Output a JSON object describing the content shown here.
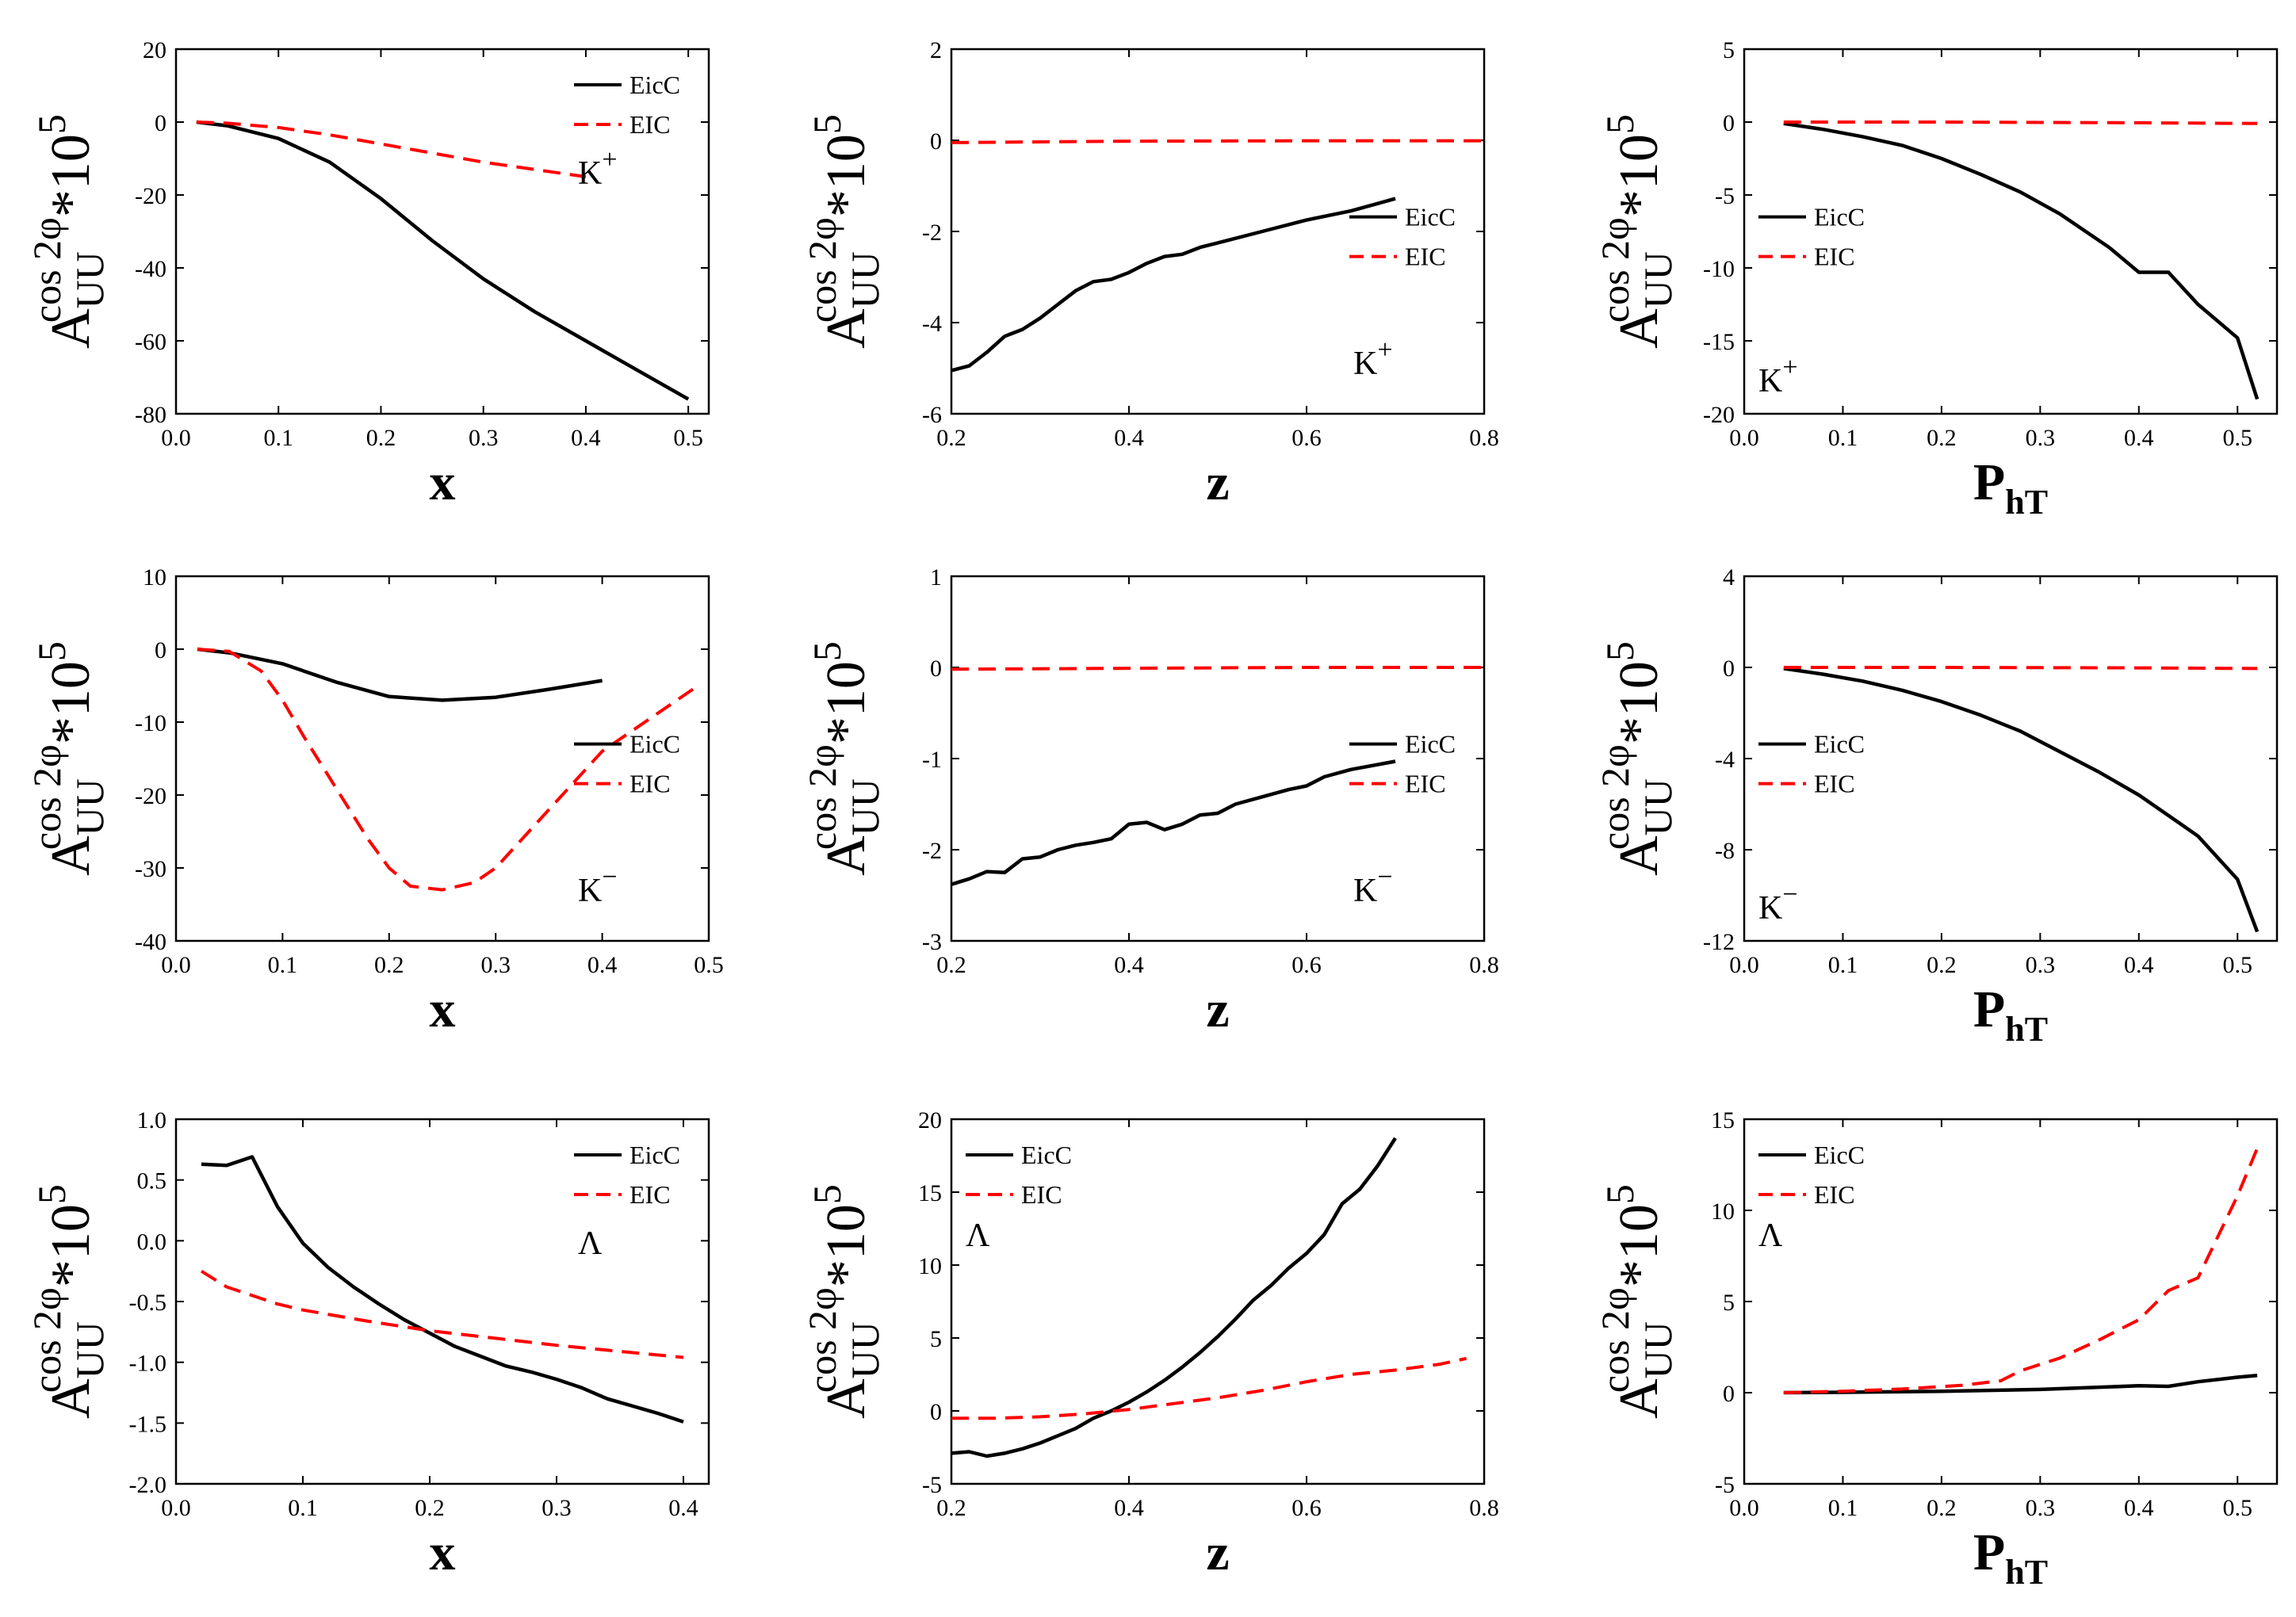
{
  "colors": {
    "eicc": "#000000",
    "eic": "#ff0000",
    "axis": "#000000"
  },
  "chart_data": [
    {
      "type": "line",
      "panel": "r0c0",
      "hadron": "K",
      "hadron_sup": "+",
      "xlabel": "x",
      "xlim": [
        0.0,
        0.52
      ],
      "ylim": [
        -80,
        20
      ],
      "xticks": [
        0.0,
        0.1,
        0.2,
        0.3,
        0.4,
        0.5
      ],
      "xtick_labels": [
        "0.0",
        "0.1",
        "0.2",
        "0.3",
        "0.4",
        "0.5"
      ],
      "yticks": [
        -80,
        -60,
        -40,
        -20,
        0,
        20
      ],
      "ytick_labels": [
        "-80",
        "-60",
        "-40",
        "-20",
        "0",
        "20"
      ],
      "legend": [
        "EicC",
        "EIC"
      ],
      "legend_loc": "top-right",
      "annot_loc": "right-mid-top",
      "series": [
        {
          "name": "EicC",
          "style": "solid",
          "x": [
            0.02,
            0.05,
            0.1,
            0.15,
            0.2,
            0.25,
            0.3,
            0.35,
            0.4,
            0.45,
            0.5
          ],
          "y": [
            0,
            -1,
            -4.5,
            -11,
            -21,
            -32.5,
            -43,
            -52,
            -60,
            -68,
            -76
          ]
        },
        {
          "name": "EIC",
          "style": "dashed",
          "x": [
            0.02,
            0.05,
            0.1,
            0.15,
            0.2,
            0.25,
            0.3,
            0.35,
            0.4
          ],
          "y": [
            0,
            -0.3,
            -1.5,
            -3.5,
            -6,
            -8.5,
            -11,
            -13,
            -15
          ]
        }
      ]
    },
    {
      "type": "line",
      "panel": "r0c1",
      "hadron": "K",
      "hadron_sup": "+",
      "xlabel": "z",
      "xlim": [
        0.2,
        0.8
      ],
      "ylim": [
        -6,
        2
      ],
      "xticks": [
        0.2,
        0.4,
        0.6,
        0.8
      ],
      "xtick_labels": [
        "0.2",
        "0.4",
        "0.6",
        "0.8"
      ],
      "yticks": [
        -6,
        -4,
        -2,
        0,
        2
      ],
      "ytick_labels": [
        "-6",
        "-4",
        "-2",
        "0",
        "2"
      ],
      "legend": [
        "EicC",
        "EIC"
      ],
      "legend_loc": "mid-right",
      "annot_loc": "bottom-right",
      "series": [
        {
          "name": "EicC",
          "style": "solid",
          "x": [
            0.2,
            0.22,
            0.24,
            0.26,
            0.28,
            0.3,
            0.32,
            0.34,
            0.36,
            0.38,
            0.4,
            0.42,
            0.44,
            0.46,
            0.48,
            0.5,
            0.55,
            0.6,
            0.65,
            0.7
          ],
          "y": [
            -5.05,
            -4.95,
            -4.65,
            -4.3,
            -4.15,
            -3.9,
            -3.6,
            -3.3,
            -3.1,
            -3.05,
            -2.9,
            -2.7,
            -2.55,
            -2.5,
            -2.35,
            -2.25,
            -2.0,
            -1.75,
            -1.55,
            -1.28
          ]
        },
        {
          "name": "EIC",
          "style": "dashed",
          "x": [
            0.2,
            0.4,
            0.6,
            0.8
          ],
          "y": [
            -0.05,
            -0.02,
            -0.01,
            -0.01
          ]
        }
      ]
    },
    {
      "type": "line",
      "panel": "r0c2",
      "hadron": "K",
      "hadron_sup": "+",
      "xlabel": "P",
      "xlabel_sub": "hT",
      "xlim": [
        0.0,
        0.54
      ],
      "ylim": [
        -20,
        5
      ],
      "xticks": [
        0.0,
        0.1,
        0.2,
        0.3,
        0.4,
        0.5
      ],
      "xtick_labels": [
        "0.0",
        "0.1",
        "0.2",
        "0.3",
        "0.4",
        "0.5"
      ],
      "yticks": [
        -20,
        -15,
        -10,
        -5,
        0,
        5
      ],
      "ytick_labels": [
        "-20",
        "-15",
        "-10",
        "-5",
        "0",
        "5"
      ],
      "legend": [
        "EicC",
        "EIC"
      ],
      "legend_loc": "mid-left",
      "annot_loc": "bottom-left",
      "series": [
        {
          "name": "EicC",
          "style": "solid",
          "x": [
            0.04,
            0.08,
            0.12,
            0.16,
            0.2,
            0.24,
            0.28,
            0.32,
            0.37,
            0.4,
            0.43,
            0.46,
            0.5,
            0.52
          ],
          "y": [
            -0.1,
            -0.5,
            -1.0,
            -1.6,
            -2.5,
            -3.6,
            -4.8,
            -6.3,
            -8.6,
            -10.3,
            -10.3,
            -12.5,
            -14.8,
            -19
          ]
        },
        {
          "name": "EIC",
          "style": "dashed",
          "x": [
            0.04,
            0.2,
            0.4,
            0.52
          ],
          "y": [
            0,
            0,
            -0.05,
            -0.1
          ]
        }
      ]
    },
    {
      "type": "line",
      "panel": "r1c0",
      "hadron": "K",
      "hadron_sup": "−",
      "xlabel": "x",
      "xlim": [
        0.0,
        0.5
      ],
      "ylim": [
        -40,
        10
      ],
      "xticks": [
        0.0,
        0.1,
        0.2,
        0.3,
        0.4,
        0.5
      ],
      "xtick_labels": [
        "0.0",
        "0.1",
        "0.2",
        "0.3",
        "0.4",
        "0.5"
      ],
      "yticks": [
        -40,
        -30,
        -20,
        -10,
        0,
        10
      ],
      "ytick_labels": [
        "-40",
        "-30",
        "-20",
        "-10",
        "0",
        "10"
      ],
      "legend": [
        "EicC",
        "EIC"
      ],
      "legend_loc": "mid-right",
      "annot_loc": "bottom-right",
      "series": [
        {
          "name": "EicC",
          "style": "solid",
          "x": [
            0.02,
            0.05,
            0.1,
            0.15,
            0.2,
            0.25,
            0.3,
            0.35,
            0.4
          ],
          "y": [
            0,
            -0.5,
            -2,
            -4.5,
            -6.5,
            -7,
            -6.6,
            -5.5,
            -4.3
          ]
        },
        {
          "name": "EIC",
          "style": "dashed",
          "x": [
            0.02,
            0.05,
            0.08,
            0.1,
            0.12,
            0.15,
            0.18,
            0.2,
            0.22,
            0.25,
            0.28,
            0.3,
            0.35,
            0.4,
            0.45,
            0.49
          ],
          "y": [
            0,
            -0.3,
            -3,
            -7,
            -12,
            -19,
            -26,
            -30,
            -32.5,
            -33,
            -32,
            -30,
            -22,
            -14,
            -9,
            -5
          ]
        }
      ]
    },
    {
      "type": "line",
      "panel": "r1c1",
      "hadron": "K",
      "hadron_sup": "−",
      "xlabel": "z",
      "xlim": [
        0.2,
        0.8
      ],
      "ylim": [
        -3,
        1
      ],
      "xticks": [
        0.2,
        0.4,
        0.6,
        0.8
      ],
      "xtick_labels": [
        "0.2",
        "0.4",
        "0.6",
        "0.8"
      ],
      "yticks": [
        -3,
        -2,
        -1,
        0,
        1
      ],
      "ytick_labels": [
        "-3",
        "-2",
        "-1",
        "0",
        "1"
      ],
      "legend": [
        "EicC",
        "EIC"
      ],
      "legend_loc": "mid-right",
      "annot_loc": "bottom-right",
      "series": [
        {
          "name": "EicC",
          "style": "solid",
          "x": [
            0.2,
            0.22,
            0.24,
            0.26,
            0.28,
            0.3,
            0.32,
            0.34,
            0.36,
            0.38,
            0.4,
            0.42,
            0.44,
            0.46,
            0.48,
            0.5,
            0.52,
            0.55,
            0.58,
            0.6,
            0.62,
            0.65,
            0.7
          ],
          "y": [
            -2.38,
            -2.32,
            -2.24,
            -2.25,
            -2.1,
            -2.08,
            -2.0,
            -1.95,
            -1.92,
            -1.88,
            -1.72,
            -1.7,
            -1.78,
            -1.72,
            -1.62,
            -1.6,
            -1.5,
            -1.42,
            -1.34,
            -1.3,
            -1.2,
            -1.12,
            -1.03
          ]
        },
        {
          "name": "EIC",
          "style": "dashed",
          "x": [
            0.2,
            0.4,
            0.6,
            0.8
          ],
          "y": [
            -0.02,
            -0.01,
            0,
            0
          ]
        }
      ]
    },
    {
      "type": "line",
      "panel": "r1c2",
      "hadron": "K",
      "hadron_sup": "−",
      "xlabel": "P",
      "xlabel_sub": "hT",
      "xlim": [
        0.0,
        0.54
      ],
      "ylim": [
        -12,
        4
      ],
      "xticks": [
        0.0,
        0.1,
        0.2,
        0.3,
        0.4,
        0.5
      ],
      "xtick_labels": [
        "0.0",
        "0.1",
        "0.2",
        "0.3",
        "0.4",
        "0.5"
      ],
      "yticks": [
        -12,
        -8,
        -4,
        0,
        4
      ],
      "ytick_labels": [
        "-12",
        "-8",
        "-4",
        "0",
        "4"
      ],
      "legend": [
        "EicC",
        "EIC"
      ],
      "legend_loc": "mid-left",
      "annot_loc": "bottom-left",
      "series": [
        {
          "name": "EicC",
          "style": "solid",
          "x": [
            0.04,
            0.08,
            0.12,
            0.16,
            0.2,
            0.24,
            0.28,
            0.32,
            0.36,
            0.4,
            0.44,
            0.46,
            0.5,
            0.52
          ],
          "y": [
            -0.05,
            -0.3,
            -0.6,
            -1.0,
            -1.5,
            -2.1,
            -2.8,
            -3.7,
            -4.6,
            -5.6,
            -6.8,
            -7.4,
            -9.3,
            -11.6
          ]
        },
        {
          "name": "EIC",
          "style": "dashed",
          "x": [
            0.04,
            0.2,
            0.4,
            0.52
          ],
          "y": [
            0,
            0,
            -0.02,
            -0.05
          ]
        }
      ]
    },
    {
      "type": "line",
      "panel": "r2c0",
      "hadron": "Λ",
      "hadron_sup": "",
      "xlabel": "x",
      "xlim": [
        0.0,
        0.42
      ],
      "ylim": [
        -2.0,
        1.0
      ],
      "xticks": [
        0.0,
        0.1,
        0.2,
        0.3,
        0.4
      ],
      "xtick_labels": [
        "0.0",
        "0.1",
        "0.2",
        "0.3",
        "0.4"
      ],
      "yticks": [
        -2.0,
        -1.5,
        -1.0,
        -0.5,
        0.0,
        0.5,
        1.0
      ],
      "ytick_labels": [
        "-2.0",
        "-1.5",
        "-1.0",
        "-0.5",
        "0.0",
        "0.5",
        "1.0"
      ],
      "legend": [
        "EicC",
        "EIC"
      ],
      "legend_loc": "top-right",
      "annot_loc": "right-mid-top",
      "series": [
        {
          "name": "EicC",
          "style": "solid",
          "x": [
            0.02,
            0.04,
            0.06,
            0.08,
            0.1,
            0.12,
            0.14,
            0.16,
            0.18,
            0.2,
            0.22,
            0.24,
            0.26,
            0.28,
            0.3,
            0.32,
            0.34,
            0.36,
            0.38,
            0.4
          ],
          "y": [
            0.63,
            0.62,
            0.69,
            0.28,
            -0.02,
            -0.22,
            -0.38,
            -0.52,
            -0.65,
            -0.76,
            -0.87,
            -0.95,
            -1.03,
            -1.08,
            -1.14,
            -1.21,
            -1.3,
            -1.36,
            -1.42,
            -1.49
          ]
        },
        {
          "name": "EIC",
          "style": "dashed",
          "x": [
            0.02,
            0.04,
            0.06,
            0.08,
            0.1,
            0.15,
            0.2,
            0.25,
            0.3,
            0.35,
            0.4
          ],
          "y": [
            -0.25,
            -0.38,
            -0.45,
            -0.52,
            -0.57,
            -0.66,
            -0.74,
            -0.8,
            -0.86,
            -0.91,
            -0.96
          ]
        }
      ]
    },
    {
      "type": "line",
      "panel": "r2c1",
      "hadron": "Λ",
      "hadron_sup": "",
      "xlabel": "z",
      "xlim": [
        0.2,
        0.8
      ],
      "ylim": [
        -5,
        20
      ],
      "xticks": [
        0.2,
        0.4,
        0.6,
        0.8
      ],
      "xtick_labels": [
        "0.2",
        "0.4",
        "0.6",
        "0.8"
      ],
      "yticks": [
        -5,
        0,
        5,
        10,
        15,
        20
      ],
      "ytick_labels": [
        "-5",
        "0",
        "5",
        "10",
        "15",
        "20"
      ],
      "legend": [
        "EicC",
        "EIC"
      ],
      "legend_loc": "top-left",
      "annot_loc": "upper-left",
      "series": [
        {
          "name": "EicC",
          "style": "solid",
          "x": [
            0.2,
            0.22,
            0.24,
            0.26,
            0.28,
            0.3,
            0.32,
            0.34,
            0.36,
            0.38,
            0.4,
            0.42,
            0.44,
            0.46,
            0.48,
            0.5,
            0.52,
            0.54,
            0.56,
            0.58,
            0.6,
            0.62,
            0.64,
            0.66,
            0.68,
            0.7
          ],
          "y": [
            -2.9,
            -2.8,
            -3.1,
            -2.9,
            -2.6,
            -2.2,
            -1.7,
            -1.2,
            -0.5,
            0.0,
            0.6,
            1.3,
            2.1,
            3.0,
            4.0,
            5.1,
            6.3,
            7.6,
            8.6,
            9.8,
            10.8,
            12.1,
            14.2,
            15.2,
            16.8,
            18.7
          ]
        },
        {
          "name": "EIC",
          "style": "dashed",
          "x": [
            0.2,
            0.25,
            0.3,
            0.35,
            0.4,
            0.45,
            0.5,
            0.55,
            0.6,
            0.65,
            0.7,
            0.75,
            0.78
          ],
          "y": [
            -0.5,
            -0.5,
            -0.4,
            -0.2,
            0.1,
            0.5,
            0.9,
            1.4,
            2.0,
            2.5,
            2.8,
            3.2,
            3.6
          ]
        }
      ]
    },
    {
      "type": "line",
      "panel": "r2c2",
      "hadron": "Λ",
      "hadron_sup": "",
      "xlabel": "P",
      "xlabel_sub": "hT",
      "xlim": [
        0.0,
        0.54
      ],
      "ylim": [
        -5,
        15
      ],
      "xticks": [
        0.0,
        0.1,
        0.2,
        0.3,
        0.4,
        0.5
      ],
      "xtick_labels": [
        "0.0",
        "0.1",
        "0.2",
        "0.3",
        "0.4",
        "0.5"
      ],
      "yticks": [
        -5,
        0,
        5,
        10,
        15
      ],
      "ytick_labels": [
        "-5",
        "0",
        "5",
        "10",
        "15"
      ],
      "legend": [
        "EicC",
        "EIC"
      ],
      "legend_loc": "top-left",
      "annot_loc": "upper-left",
      "series": [
        {
          "name": "EicC",
          "style": "solid",
          "x": [
            0.04,
            0.1,
            0.2,
            0.3,
            0.4,
            0.43,
            0.46,
            0.5,
            0.52
          ],
          "y": [
            0,
            0.02,
            0.08,
            0.18,
            0.38,
            0.35,
            0.6,
            0.85,
            0.95
          ]
        },
        {
          "name": "EIC",
          "style": "dashed",
          "x": [
            0.04,
            0.1,
            0.16,
            0.22,
            0.26,
            0.28,
            0.32,
            0.36,
            0.4,
            0.43,
            0.46,
            0.5,
            0.52
          ],
          "y": [
            0,
            0.08,
            0.2,
            0.4,
            0.65,
            1.2,
            1.9,
            2.9,
            4.0,
            5.6,
            6.3,
            10.8,
            13.4
          ]
        }
      ]
    }
  ],
  "ylabel": {
    "main": "A",
    "sub": "UU",
    "sup": "cos 2φ",
    "suffix": "*10",
    "exp": "5"
  }
}
